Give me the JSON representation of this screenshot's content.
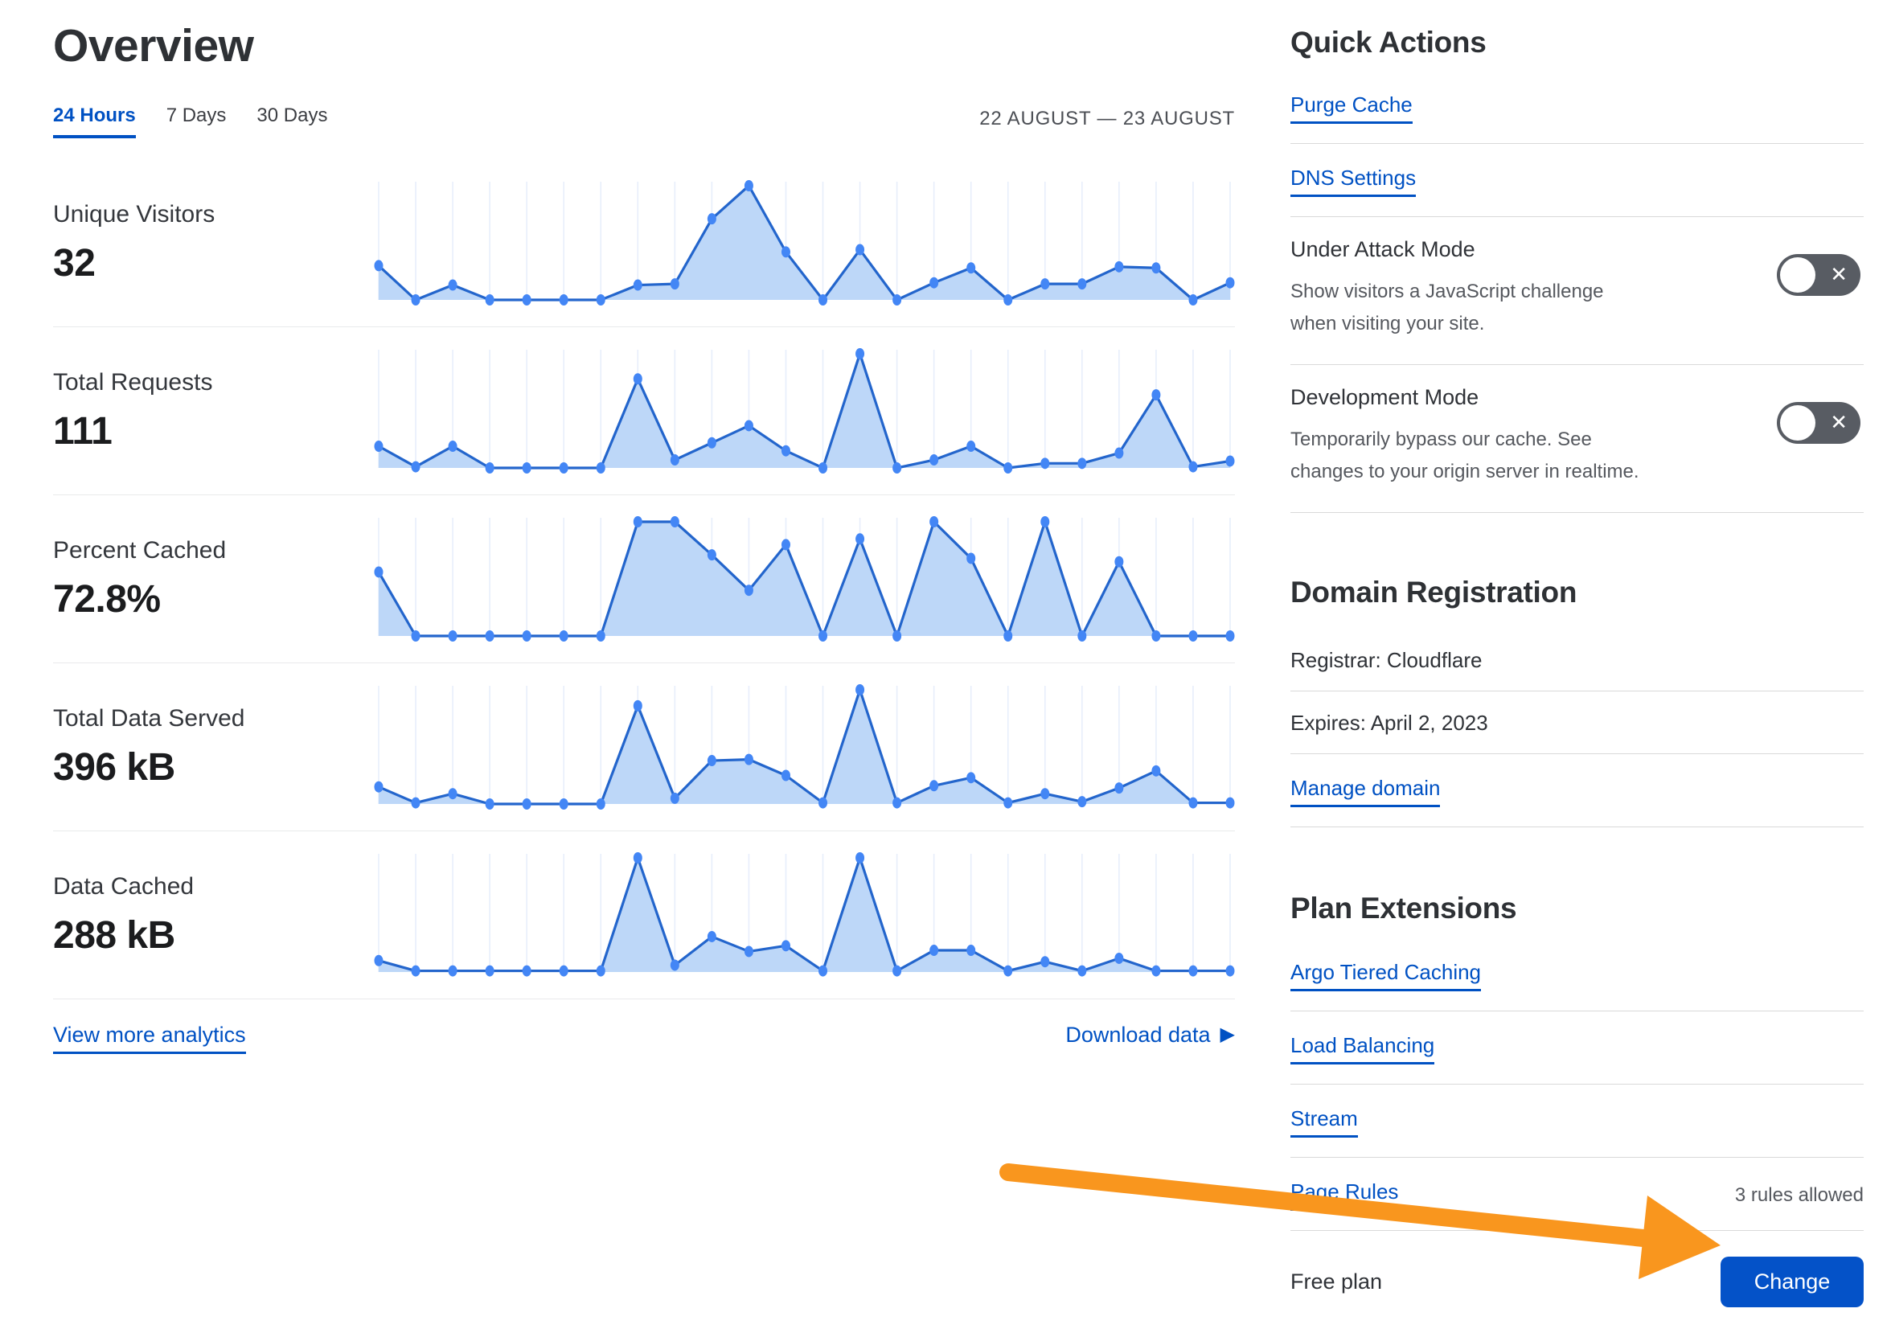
{
  "page": {
    "title": "Overview",
    "tabs": [
      {
        "label": "24 Hours",
        "active": true
      },
      {
        "label": "7 Days",
        "active": false
      },
      {
        "label": "30 Days",
        "active": false
      }
    ],
    "date_range": "22 AUGUST — 23 AUGUST",
    "view_more_label": "View more analytics",
    "download_label": "Download data",
    "download_icon": "▶"
  },
  "chart_data": [
    {
      "type": "area",
      "label": "Unique Visitors",
      "value": "32",
      "points": [
        30,
        0,
        13,
        0,
        0,
        0,
        0,
        13,
        14,
        71,
        100,
        42,
        0,
        44,
        0,
        15,
        28,
        0,
        14,
        14,
        29,
        28,
        0,
        15
      ],
      "x_range": "22 AUGUST — 23 AUGUST (hourly)",
      "ylim": [
        0,
        100
      ],
      "grid": "vertical"
    },
    {
      "type": "area",
      "label": "Total Requests",
      "value": "111",
      "points": [
        19,
        1,
        19,
        0,
        0,
        0,
        0,
        78,
        7,
        22,
        37,
        15,
        0,
        100,
        0,
        7,
        19,
        0,
        4,
        4,
        13,
        64,
        1,
        6
      ],
      "x_range": "22 AUGUST — 23 AUGUST (hourly)",
      "ylim": [
        0,
        100
      ],
      "grid": "vertical"
    },
    {
      "type": "area",
      "label": "Percent Cached",
      "value": "72.8%",
      "points": [
        56,
        0,
        0,
        0,
        0,
        0,
        0,
        100,
        100,
        71,
        40,
        80,
        0,
        85,
        0,
        100,
        68,
        0,
        100,
        0,
        65,
        0,
        0,
        0
      ],
      "x_range": "22 AUGUST — 23 AUGUST (hourly)",
      "ylim": [
        0,
        100
      ],
      "grid": "vertical"
    },
    {
      "type": "area",
      "label": "Total Data Served",
      "value": "396 kB",
      "points": [
        15,
        1,
        9,
        0,
        0,
        0,
        0,
        86,
        5,
        38,
        39,
        25,
        1,
        100,
        1,
        16,
        23,
        1,
        9,
        2,
        14,
        29,
        1,
        1
      ],
      "x_range": "22 AUGUST — 23 AUGUST (hourly)",
      "ylim": [
        0,
        100
      ],
      "grid": "vertical"
    },
    {
      "type": "area",
      "label": "Data Cached",
      "value": "288 kB",
      "points": [
        10,
        1,
        1,
        1,
        1,
        1,
        1,
        100,
        6,
        31,
        18,
        23,
        1,
        100,
        1,
        19,
        19,
        1,
        9,
        1,
        12,
        1,
        1,
        1
      ],
      "x_range": "22 AUGUST — 23 AUGUST (hourly)",
      "ylim": [
        0,
        100
      ],
      "grid": "vertical"
    }
  ],
  "sidebar": {
    "quick_actions": {
      "title": "Quick Actions",
      "purge_cache": "Purge Cache",
      "dns_settings": "DNS Settings"
    },
    "under_attack": {
      "title": "Under Attack Mode",
      "description": [
        "Show visitors a JavaScript challenge",
        "when visiting your site."
      ],
      "state": "off",
      "off_glyph": "✕"
    },
    "development_mode": {
      "title": "Development Mode",
      "description": [
        "Temporarily bypass our cache. See",
        "changes to your origin server in realtime."
      ],
      "state": "off",
      "off_glyph": "✕"
    },
    "domain_registration": {
      "title": "Domain Registration",
      "registrar": "Registrar: Cloudflare",
      "expires": "Expires: April 2, 2023",
      "manage": "Manage domain"
    },
    "plan_extensions": {
      "title": "Plan Extensions",
      "argo": "Argo Tiered Caching",
      "load_balancing": "Load Balancing",
      "stream": "Stream",
      "page_rules": {
        "label": "Page Rules",
        "note": "3 rules allowed"
      }
    },
    "plan": {
      "label": "Free plan",
      "button": "Change"
    }
  },
  "colors": {
    "accent_blue": "#0051c3",
    "button_blue": "#0452c8",
    "chart_line": "#2365cc",
    "chart_dot": "#4386f5",
    "chart_fill": "#bdd7f8",
    "chart_grid": "#e7eefb",
    "arrow_orange": "#f9961e",
    "toggle_bg": "#585c63"
  }
}
